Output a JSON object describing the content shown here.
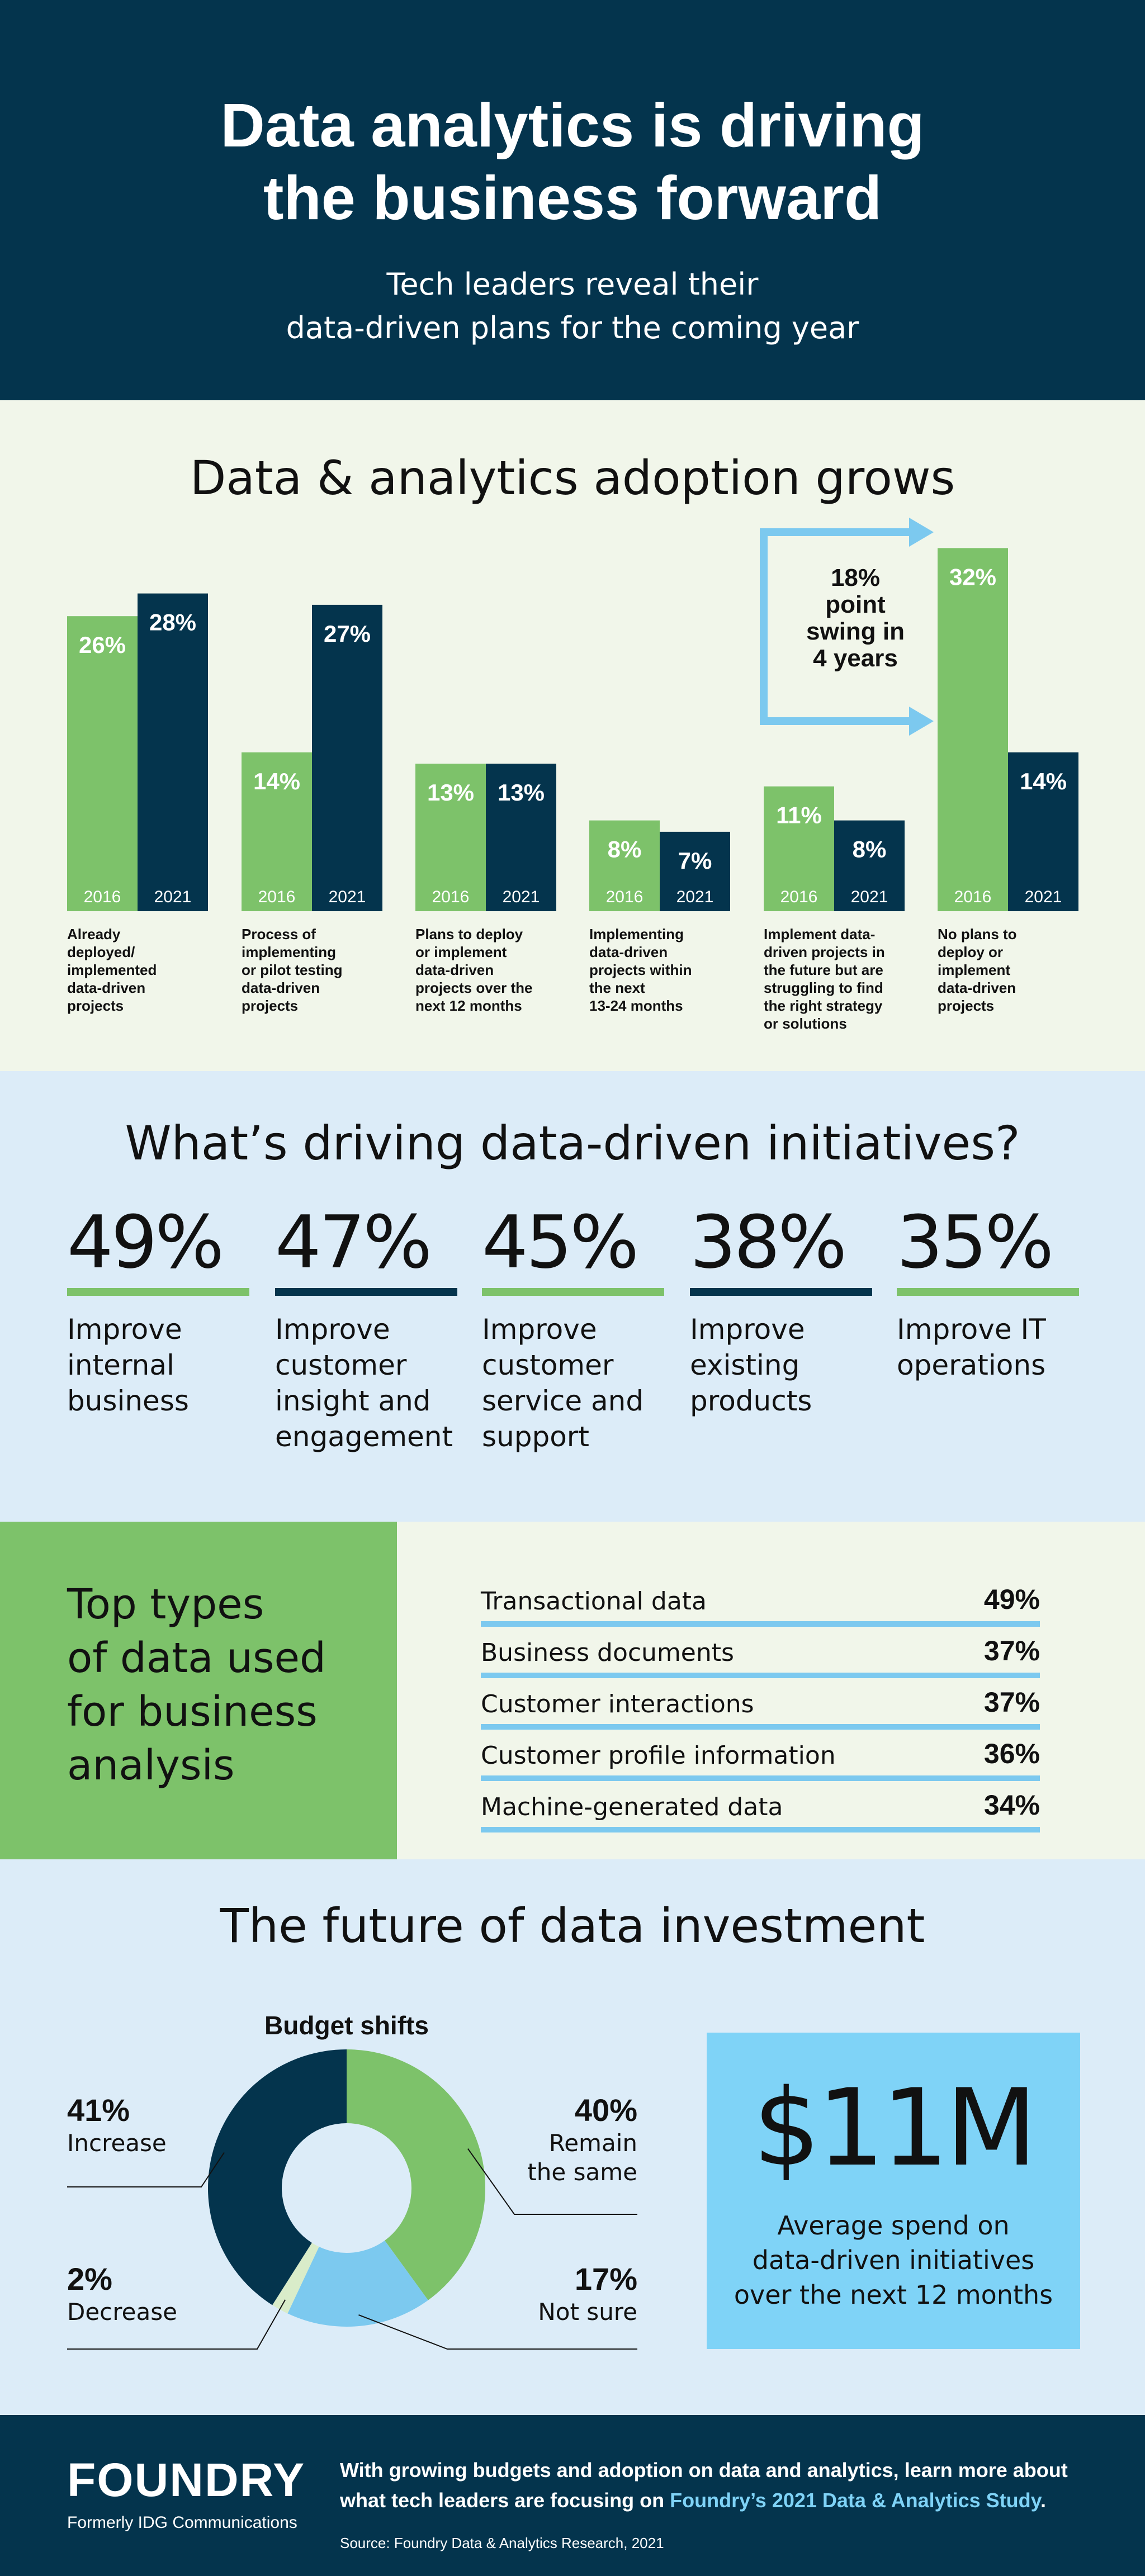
{
  "header": {
    "title_line1": "Data analytics is driving",
    "title_line2": "the business forward",
    "subtitle_line1": "Tech leaders reveal their",
    "subtitle_line2": "data-driven plans for the coming year"
  },
  "adoption": {
    "title": "Data & analytics adoption grows",
    "callout": [
      "18%",
      "point",
      "swing in",
      "4 years"
    ]
  },
  "drivers": {
    "title": "What’s driving data-driven initiatives?",
    "items": [
      {
        "pct": "49%",
        "desc": [
          "Improve",
          "internal",
          "business"
        ],
        "color": "#7dc26a"
      },
      {
        "pct": "47%",
        "desc": [
          "Improve",
          "customer",
          "insight and",
          "engagement"
        ],
        "color": "#04344d"
      },
      {
        "pct": "45%",
        "desc": [
          "Improve",
          "customer",
          "service and",
          "support"
        ],
        "color": "#7dc26a"
      },
      {
        "pct": "38%",
        "desc": [
          "Improve",
          "existing",
          "products"
        ],
        "color": "#04344d"
      },
      {
        "pct": "35%",
        "desc": [
          "Improve IT",
          "operations"
        ],
        "color": "#7dc26a"
      }
    ]
  },
  "types": {
    "title_lines": [
      "Top types",
      "of data used",
      "for business",
      "analysis"
    ],
    "rows": [
      {
        "name": "Transactional data",
        "value": "49%"
      },
      {
        "name": "Business documents",
        "value": "37%"
      },
      {
        "name": "Customer interactions",
        "value": "37%"
      },
      {
        "name": "Customer profile information",
        "value": "36%"
      },
      {
        "name": "Machine-generated data",
        "value": "34%"
      }
    ]
  },
  "future": {
    "title": "The future of data investment",
    "donut_title": "Budget shifts",
    "big_value": "$11M",
    "big_desc": [
      "Average spend on",
      "data-driven initiatives",
      "over the next 12 months"
    ]
  },
  "footer": {
    "logo": "FOUNDRY",
    "logo_sub": "Formerly IDG Communications",
    "text_line1": "With growing budgets and adoption on data and analytics, learn more about",
    "text_line2_prefix": "what tech leaders are focusing on ",
    "text_link": "Foundry’s 2021 Data & Analytics Study",
    "text_line2_suffix": ".",
    "source": "Source: Foundry Data & Analytics Research, 2021"
  },
  "colors": {
    "green": "#7dc26a",
    "navy": "#04344d",
    "light_blue": "#7cc9ef",
    "pale_green": "#d9ecc9"
  },
  "chart_data": [
    {
      "type": "bar",
      "categories": [
        "Already deployed/ implemented data-driven projects",
        "Process of implementing or pilot testing data-driven projects",
        "Plans to deploy or implement data-driven projects over the next 12 months",
        "Implementing data-driven projects within the next 13-24 months",
        "Implement data-driven projects in the future but are struggling to find the right strategy or solutions",
        "No plans to deploy or implement data-driven projects"
      ],
      "category_lines": [
        [
          "Already",
          "deployed/",
          "implemented",
          "data-driven",
          "projects"
        ],
        [
          "Process of",
          "implementing",
          "or pilot testing",
          "data-driven",
          "projects"
        ],
        [
          "Plans to deploy",
          "or implement",
          "data-driven",
          "projects over the",
          "next 12 months"
        ],
        [
          "Implementing",
          "data-driven",
          "projects within",
          "the next",
          "13-24 months"
        ],
        [
          "Implement data-",
          "driven projects in",
          "the future but are",
          "struggling to find",
          "the right strategy",
          "or solutions"
        ],
        [
          "No plans to",
          "deploy or",
          "implement",
          "data-driven",
          "projects"
        ]
      ],
      "series": [
        {
          "name": "2016",
          "values": [
            26,
            14,
            13,
            8,
            11,
            32
          ],
          "color": "#7dc26a"
        },
        {
          "name": "2021",
          "values": [
            28,
            27,
            13,
            7,
            8,
            14
          ],
          "color": "#04344d"
        }
      ],
      "value_labels": {
        "2016": [
          "26%",
          "14%",
          "13%",
          "8%",
          "11%",
          "32%"
        ],
        "2021": [
          "28%",
          "27%",
          "13%",
          "7%",
          "8%",
          "14%"
        ]
      },
      "ylim": [
        0,
        32
      ]
    },
    {
      "type": "pie",
      "title": "Budget shifts",
      "labels": [
        "Remain the same",
        "Not sure",
        "Decrease",
        "Increase"
      ],
      "values": [
        40,
        17,
        2,
        41
      ],
      "value_labels": [
        "40%",
        "17%",
        "2%",
        "41%"
      ],
      "colors": [
        "#7dc26a",
        "#7cc9ef",
        "#d9ecc9",
        "#04344d"
      ]
    }
  ]
}
